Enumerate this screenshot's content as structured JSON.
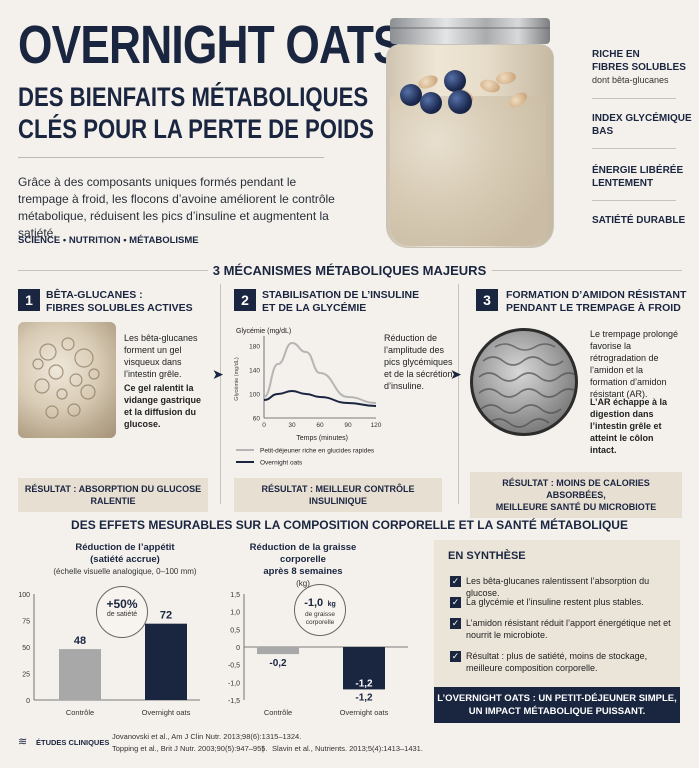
{
  "header": {
    "title": "OVERNIGHT OATS",
    "subtitle_line1": "DES BIENFAITS MÉTABOLIQUES",
    "subtitle_line2": "CLÉS POUR LA PERTE DE POIDS",
    "intro": "Grâce à des composants uniques formés pendant le trempage à froid, les flocons d’avoine améliorent le contrôle métabolique, réduisent les pics d’insuline et augmentent la satiété.",
    "tags": "SCIENCE • NUTRITION • MÉTABOLISME"
  },
  "benefits": [
    {
      "line1": "RICHE EN",
      "line2": "FIBRES SOLUBLES",
      "note": "dont bêta-glucanes"
    },
    {
      "line1": "INDEX GLYCÉMIQUE",
      "line2": "BAS",
      "note": ""
    },
    {
      "line1": "ÉNERGIE LIBÉRÉE",
      "line2": "LENTEMENT",
      "note": ""
    },
    {
      "line1": "SATIÉTÉ DURABLE",
      "line2": "",
      "note": ""
    }
  ],
  "mechanisms_title": "3 MÉCANISMES MÉTABOLIQUES MAJEURS",
  "mechanisms": [
    {
      "num": "1",
      "title1": "BÊTA-GLUCANES :",
      "title2": "FIBRES SOLUBLES ACTIVES",
      "text1": "Les bêta-glucanes forment un gel visqueux dans l’intestin grêle.",
      "text2": "Ce gel ralentit la vidange gastrique et la diffusion du glucose.",
      "result": "RÉSULTAT : ABSORPTION DU GLUCOSE RALENTIE"
    },
    {
      "num": "2",
      "title1": "STABILISATION DE L’INSULINE",
      "title2": "ET DE LA GLYCÉMIE",
      "text1": "Réduction de l’amplitude des pics glycémiques et de la sécrétion d’insuline.",
      "result": "RÉSULTAT : MEILLEUR CONTRÔLE INSULINIQUE"
    },
    {
      "num": "3",
      "title1": "FORMATION D’AMIDON RÉSISTANT",
      "title2": "PENDANT LE TREMPAGE À FROID",
      "text1": "Le trempage prolongé favorise la rétrogradation de l’amidon et la formation d’amidon résistant (AR).",
      "text2": "L’AR échappe à la digestion dans l’intestin grêle et atteint le côlon intact.",
      "result1": "RÉSULTAT : MOINS DE CALORIES ABSORBÉES,",
      "result2": "MEILLEURE SANTÉ DU MICROBIOTE"
    }
  ],
  "effects_title": "DES EFFETS MESURABLES SUR LA COMPOSITION CORPORELLE ET LA SANTÉ MÉTABOLIQUE",
  "chart_data": [
    {
      "type": "line",
      "ylabel": "Glycémie (mg/dL)",
      "ylabel_side": "Glycémie (mg/dL)",
      "xlabel": "Temps (minutes)",
      "x_ticks": [
        0,
        30,
        60,
        90,
        120
      ],
      "y_ticks": [
        60,
        100,
        140,
        180
      ],
      "xlim": [
        0,
        120
      ],
      "ylim": [
        60,
        190
      ],
      "series": [
        {
          "name": "Petit-déjeuner riche en glucides rapides",
          "x": [
            0,
            15,
            30,
            45,
            60,
            90,
            120
          ],
          "y": [
            95,
            150,
            185,
            170,
            135,
            95,
            85
          ],
          "color": "#b5b5b5"
        },
        {
          "name": "Overnight oats",
          "x": [
            0,
            15,
            30,
            45,
            60,
            90,
            120
          ],
          "y": [
            90,
            100,
            105,
            100,
            95,
            85,
            80
          ],
          "color": "#1a2540"
        }
      ]
    },
    {
      "type": "bar",
      "title": "Réduction de l’appétit",
      "subtitle": "(satiété accrue)",
      "subtitle2": "(échelle visuelle analogique, 0–100 mm)",
      "categories": [
        "Contrôle",
        "Overnight oats"
      ],
      "values": [
        48,
        72
      ],
      "ylim": [
        0,
        100
      ],
      "y_ticks": [
        0,
        25,
        50,
        75,
        100
      ],
      "annotation_main": "+50%",
      "annotation_sub": "de satiété",
      "colors": [
        "#a8a8a8",
        "#1a2540"
      ]
    },
    {
      "type": "bar",
      "title": "Réduction de la graisse corporelle",
      "title2": "après 8 semaines",
      "subtitle": "(kg)",
      "categories": [
        "Contrôle",
        "Overnight oats"
      ],
      "values": [
        -0.2,
        -1.2
      ],
      "labels": [
        "-0,2",
        "-1,2"
      ],
      "ylim": [
        -1.5,
        1.5
      ],
      "y_ticks": [
        "1,5",
        "1,0",
        "0,5",
        "0",
        "-0,5",
        "-1,0",
        "-1,5"
      ],
      "annotation_main": "-1,0",
      "annotation_unit": "kg",
      "annotation_sub": "de graisse corporelle",
      "colors": [
        "#a8a8a8",
        "#1a2540"
      ]
    }
  ],
  "synthesis": {
    "title": "EN SYNTHÈSE",
    "items": [
      "Les bêta-glucanes ralentissent l’absorption du glucose.",
      "La glycémie et l’insuline restent plus stables.",
      "L’amidon résistant réduit l’apport énergétique net et nourrit le microbiote.",
      "Résultat : plus de satiété, moins de stockage, meilleure composition corporelle."
    ],
    "footer1": "L’OVERNIGHT OATS : UN PETIT-DÉJEUNER SIMPLE,",
    "footer2": "UN IMPACT MÉTABOLIQUE PUISSANT."
  },
  "studies": {
    "label": "ÉTUDES CLINIQUES",
    "ref1": "Jovanovski et al., Am J Clin Nutr. 2013;98(6):1315–1324.",
    "ref2": "Topping et al., Brit J Nutr. 2003;90(5):947–955.",
    "ref3": "Slavin et al., Nutrients. 2013;5(4):1413–1431."
  }
}
